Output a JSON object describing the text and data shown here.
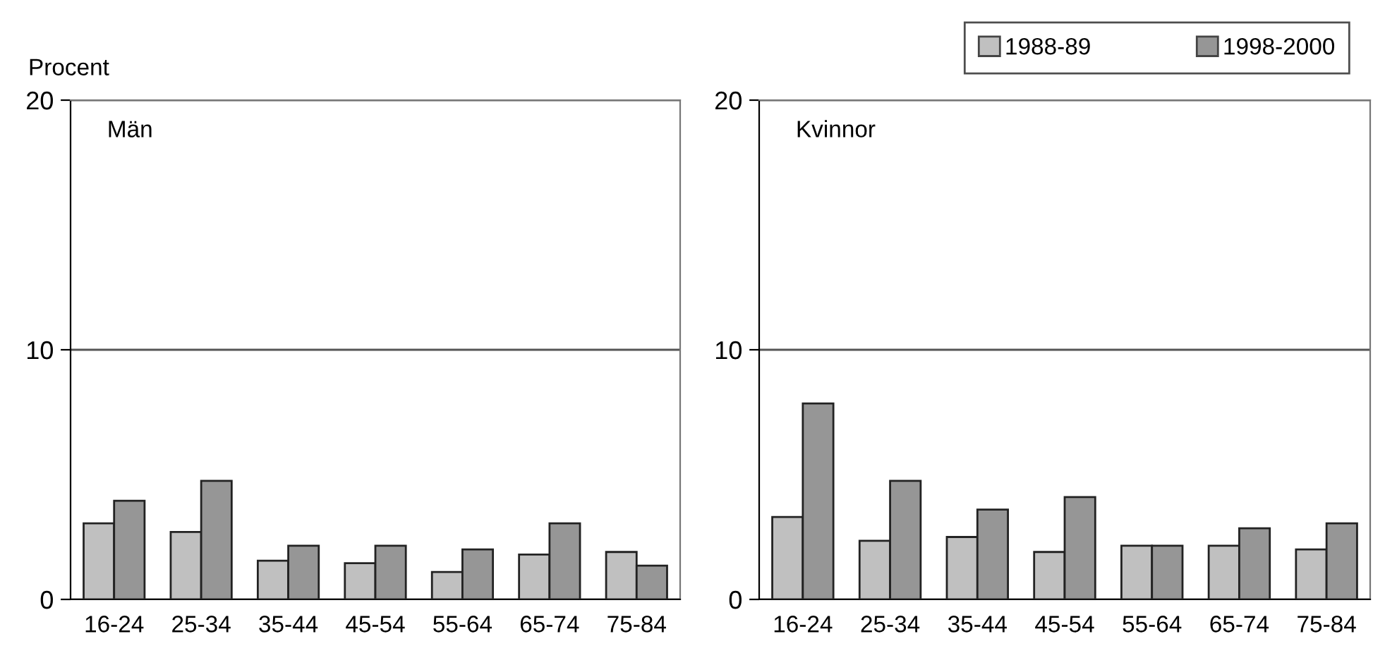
{
  "chart_data": [
    {
      "type": "bar",
      "ylabel": "Procent",
      "annotations": [
        "Män"
      ],
      "categories": [
        "16-24",
        "25-34",
        "35-44",
        "45-54",
        "55-64",
        "65-74",
        "75-84"
      ],
      "ylim": [
        0,
        20
      ],
      "yticks": [
        0,
        10,
        20
      ],
      "grid": "y",
      "legend": false,
      "series": [
        {
          "color": "#c0c0c0",
          "values": [
            3.05,
            2.7,
            1.55,
            1.45,
            1.1,
            1.8,
            1.9
          ]
        },
        {
          "color": "#969696",
          "values": [
            3.95,
            4.75,
            2.15,
            2.15,
            2.0,
            3.05,
            1.35
          ]
        }
      ]
    },
    {
      "type": "bar",
      "annotations": [
        "Kvinnor"
      ],
      "categories": [
        "16-24",
        "25-34",
        "35-44",
        "45-54",
        "55-64",
        "65-74",
        "75-84"
      ],
      "ylim": [
        0,
        20
      ],
      "yticks": [
        0,
        10,
        20
      ],
      "grid": "y",
      "legend": "top right",
      "series": [
        {
          "name": "1988-89",
          "color": "#c0c0c0",
          "values": [
            3.3,
            2.35,
            2.5,
            1.9,
            2.15,
            2.15,
            2.0
          ]
        },
        {
          "name": "1998-2000",
          "color": "#969696",
          "values": [
            7.85,
            4.75,
            3.6,
            4.1,
            2.15,
            2.85,
            3.05
          ]
        }
      ]
    }
  ]
}
